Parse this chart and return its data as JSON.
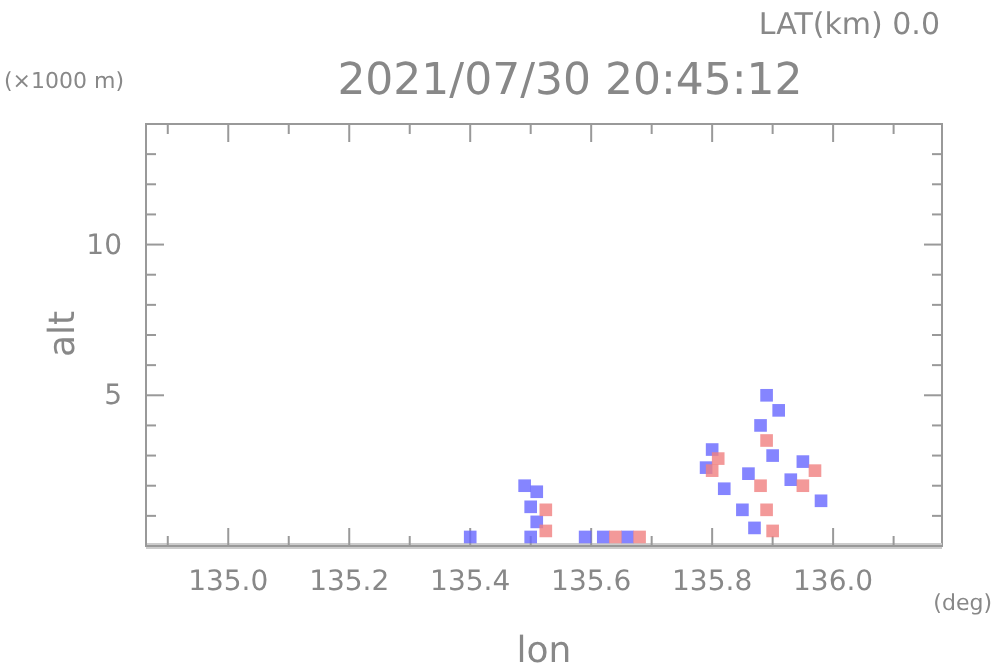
{
  "chart_data": {
    "type": "scatter",
    "title": "2021/07/30 20:45:12",
    "subtitle": "LAT(km) 0.0",
    "xlabel": "lon",
    "ylabel": "alt",
    "annotations": [
      "(×1000 m)",
      "(deg)"
    ],
    "xlim": [
      134.864,
      136.18
    ],
    "xticks": [
      {
        "value": 134.9,
        "label": null
      },
      {
        "value": 135.0,
        "label": "135.0"
      },
      {
        "value": 135.1,
        "label": null
      },
      135.2,
      {
        "value": 135.3,
        "label": null
      },
      135.4,
      {
        "value": 135.5,
        "label": null
      },
      135.6,
      {
        "value": 135.7,
        "label": null
      },
      135.8,
      {
        "value": 135.9,
        "label": null
      },
      {
        "value": 136.0,
        "label": "136.0"
      },
      {
        "value": 136.1,
        "label": null
      }
    ],
    "ylim": [
      0,
      14
    ],
    "yticks": [
      {
        "value": 1,
        "label": null
      },
      {
        "value": 2,
        "label": null
      },
      {
        "value": 3,
        "label": null
      },
      {
        "value": 4,
        "label": null
      },
      5,
      {
        "value": 6,
        "label": null
      },
      {
        "value": 7,
        "label": null
      },
      {
        "value": 8,
        "label": null
      },
      {
        "value": 9,
        "label": null
      },
      10,
      {
        "value": 11,
        "label": null
      },
      {
        "value": 12,
        "label": null
      },
      {
        "value": 13,
        "label": null
      }
    ],
    "grid": false,
    "marker": "square",
    "series": [
      {
        "color": "#6666ff",
        "x": [
          135.4,
          135.5,
          135.51,
          135.5,
          135.51,
          135.49,
          135.59,
          135.62,
          135.66,
          135.8,
          135.79,
          135.82,
          135.86,
          135.85,
          135.87,
          135.88,
          135.89,
          135.91,
          135.9,
          135.95,
          135.98,
          135.93
        ],
        "values": [
          0.3,
          0.3,
          0.8,
          1.3,
          1.8,
          2.0,
          0.3,
          0.3,
          0.3,
          3.2,
          2.6,
          1.9,
          2.4,
          1.2,
          0.6,
          4.0,
          5.0,
          4.5,
          3.0,
          2.8,
          1.5,
          2.2
        ]
      },
      {
        "color": "#f08080",
        "x": [
          135.525,
          135.525,
          135.64,
          135.68,
          135.8,
          135.81,
          135.88,
          135.89,
          135.9,
          135.95,
          135.97,
          135.89
        ],
        "values": [
          0.5,
          1.2,
          0.3,
          0.3,
          2.5,
          2.9,
          2.0,
          1.2,
          0.5,
          2.0,
          2.5,
          3.5
        ]
      }
    ]
  }
}
